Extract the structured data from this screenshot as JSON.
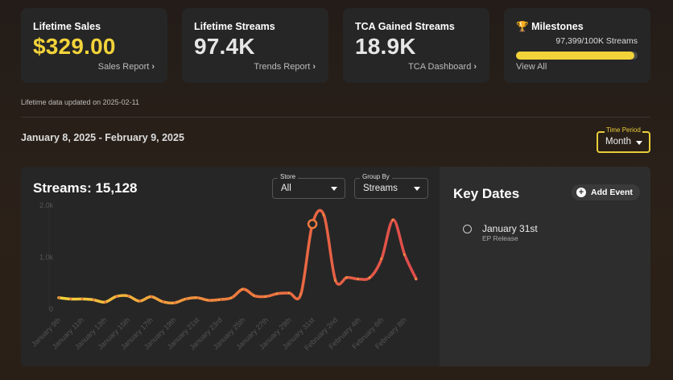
{
  "cards": [
    {
      "title": "Lifetime Sales",
      "value": "$329.00",
      "link": "Sales Report",
      "color": "#f2d33a"
    },
    {
      "title": "Lifetime Streams",
      "value": "97.4K",
      "link": "Trends Report",
      "color": "#e6e6e6"
    },
    {
      "title": "TCA Gained Streams",
      "value": "18.9K",
      "link": "TCA Dashboard",
      "color": "#e6e6e6"
    }
  ],
  "milestones": {
    "title": "Milestones",
    "icon": "trophy-icon",
    "progress_text": "97,399/100K Streams",
    "progress": 0.974,
    "link": "View All",
    "color": "#f2d33a"
  },
  "updated": "Lifetime data updated on 2025-02-11",
  "date_range": "January 8, 2025 - February 9, 2025",
  "time_period": {
    "label": "Time Period",
    "value": "Month"
  },
  "chart_header": {
    "title": "Streams: 15,128"
  },
  "filters": {
    "store": {
      "label": "Store",
      "value": "All"
    },
    "group_by": {
      "label": "Group By",
      "value": "Streams"
    }
  },
  "key_dates": {
    "title": "Key Dates",
    "add_label": "Add Event",
    "items": [
      {
        "date": "January 31st",
        "desc": "EP Release"
      }
    ]
  },
  "chart_data": {
    "type": "line",
    "y_ticks": [
      "0",
      "1.0k",
      "2.0k"
    ],
    "ylim": [
      0,
      2000
    ],
    "x_tick_labels": [
      "January 9th",
      "January 11th",
      "January 13th",
      "January 15th",
      "January 17th",
      "January 19th",
      "January 21st",
      "January 23rd",
      "January 25th",
      "January 27th",
      "January 29th",
      "January 31st",
      "February 2nd",
      "February 4th",
      "February 6th",
      "February 8th"
    ],
    "x": [
      "Jan 9",
      "Jan 10",
      "Jan 11",
      "Jan 12",
      "Jan 13",
      "Jan 14",
      "Jan 15",
      "Jan 16",
      "Jan 17",
      "Jan 18",
      "Jan 19",
      "Jan 20",
      "Jan 21",
      "Jan 22",
      "Jan 23",
      "Jan 24",
      "Jan 25",
      "Jan 26",
      "Jan 27",
      "Jan 28",
      "Jan 29",
      "Jan 30",
      "Jan 31",
      "Feb 1",
      "Feb 2",
      "Feb 3",
      "Feb 4",
      "Feb 5",
      "Feb 6",
      "Feb 7",
      "Feb 8",
      "Feb 9"
    ],
    "values": [
      220,
      195,
      195,
      180,
      135,
      245,
      255,
      155,
      240,
      145,
      120,
      195,
      220,
      170,
      185,
      220,
      385,
      255,
      245,
      300,
      310,
      290,
      1640,
      1810,
      555,
      610,
      580,
      610,
      970,
      1720,
      1050,
      580
    ],
    "highlight_index": 22,
    "gradient": [
      "#f2d33a",
      "#ee7a3e",
      "#e04b4b"
    ],
    "grid": false
  }
}
